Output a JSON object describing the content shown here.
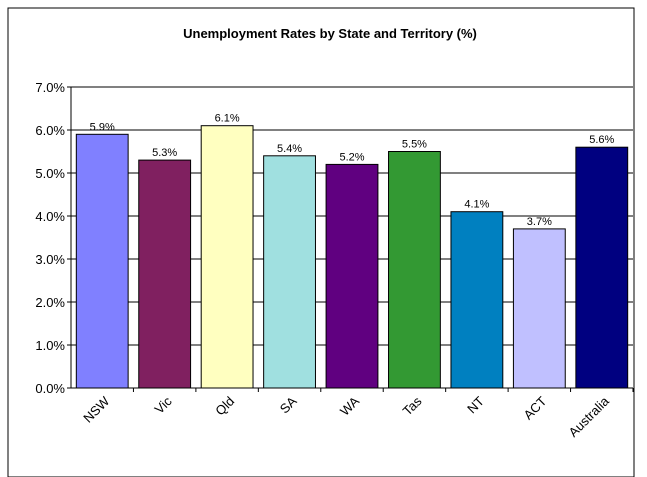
{
  "chart_data": {
    "type": "bar",
    "title": "Unemployment Rates by State and Territory (%)",
    "xlabel": "",
    "ylabel": "",
    "categories": [
      "NSW",
      "Vic",
      "Qld",
      "SA",
      "WA",
      "Tas",
      "NT",
      "ACT",
      "Australia"
    ],
    "values": [
      5.9,
      5.3,
      6.1,
      5.4,
      5.2,
      5.5,
      4.1,
      3.7,
      5.6
    ],
    "data_labels": [
      "5.9%",
      "5.3%",
      "6.1%",
      "5.4%",
      "5.2%",
      "5.5%",
      "4.1%",
      "3.7%",
      "5.6%"
    ],
    "bar_colors": [
      "#8080ff",
      "#802060",
      "#ffffc0",
      "#a0e0e0",
      "#600080",
      "#339933",
      "#0080c0",
      "#c0c0ff",
      "#000080"
    ],
    "ylim": [
      0,
      7
    ],
    "yticks": [
      0,
      1,
      2,
      3,
      4,
      5,
      6,
      7
    ],
    "ytick_labels": [
      "0.0%",
      "1.0%",
      "2.0%",
      "3.0%",
      "4.0%",
      "5.0%",
      "6.0%",
      "7.0%"
    ],
    "grid": true,
    "legend": "none"
  }
}
